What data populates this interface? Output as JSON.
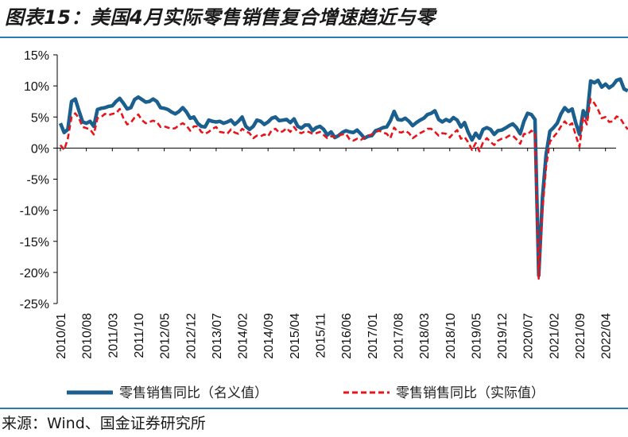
{
  "title": "图表15：美国4月实际零售销售复合增速趋近与零",
  "source": "来源：Wind、国金证券研究所",
  "colors": {
    "nominal": "#1a5f8e",
    "real": "#e8141b",
    "axis": "#000000",
    "rule": "#2a7ab5"
  },
  "chart_data": {
    "type": "line",
    "title": "图表15：美国4月实际零售销售复合增速趋近与零",
    "xlabel": "",
    "ylabel": "",
    "ylim": [
      -25,
      15
    ],
    "yticks": [
      "15%",
      "10%",
      "5%",
      "0%",
      "-5%",
      "-10%",
      "-15%",
      "-20%",
      "-25%"
    ],
    "ytick_values": [
      15,
      10,
      5,
      0,
      -5,
      -10,
      -15,
      -20,
      -25
    ],
    "xticks": [
      "2010/01",
      "2010/08",
      "2011/03",
      "2011/10",
      "2012/05",
      "2012/12",
      "2013/07",
      "2014/02",
      "2014/09",
      "2015/04",
      "2015/11",
      "2016/06",
      "2017/01",
      "2017/08",
      "2018/03",
      "2018/10",
      "2019/05",
      "2019/12",
      "2020/07",
      "2021/02",
      "2021/09",
      "2022/04"
    ],
    "xtick_indices": [
      0,
      7,
      14,
      21,
      28,
      35,
      42,
      49,
      56,
      63,
      70,
      77,
      84,
      91,
      98,
      105,
      112,
      119,
      126,
      133,
      140,
      147
    ],
    "n_points": 150,
    "legend_position": "bottom",
    "series": [
      {
        "name": "零售销售同比（名义值）",
        "style": "solid",
        "values": [
          4.0,
          2.5,
          3.0,
          7.5,
          7.9,
          6.0,
          4.2,
          4.0,
          4.3,
          3.5,
          6.2,
          6.4,
          6.5,
          6.7,
          6.8,
          7.5,
          8.0,
          7.2,
          6.3,
          6.5,
          7.8,
          8.2,
          7.8,
          7.4,
          7.5,
          7.9,
          7.5,
          6.5,
          6.4,
          6.2,
          5.8,
          5.5,
          5.9,
          6.5,
          5.8,
          4.8,
          5.0,
          4.0,
          3.5,
          3.4,
          4.5,
          4.3,
          4.2,
          4.3,
          4.0,
          4.2,
          4.5,
          3.8,
          4.3,
          5.0,
          3.5,
          3.0,
          3.5,
          4.5,
          4.3,
          3.8,
          4.2,
          4.8,
          5.0,
          4.4,
          4.5,
          4.6,
          4.1,
          4.7,
          3.5,
          3.2,
          3.7,
          3.7,
          2.8,
          3.3,
          3.5,
          3.0,
          2.1,
          2.6,
          1.7,
          2.0,
          2.5,
          2.8,
          2.6,
          2.5,
          2.9,
          2.3,
          1.6,
          1.9,
          2.0,
          2.8,
          3.0,
          3.3,
          3.4,
          4.4,
          5.9,
          4.6,
          4.5,
          4.8,
          4.3,
          3.6,
          4.1,
          4.5,
          4.8,
          5.4,
          5.6,
          6.0,
          4.6,
          4.2,
          4.6,
          4.3,
          4.9,
          4.5,
          3.4,
          4.1,
          2.5,
          1.3,
          2.4,
          1.6,
          3.0,
          3.3,
          3.0,
          2.2,
          2.8,
          2.9,
          3.2,
          3.6,
          3.9,
          3.3,
          2.3,
          4.3,
          5.6,
          5.4,
          4.6,
          -20.5,
          -8.0,
          -1.0,
          2.7,
          3.3,
          4.0,
          5.5,
          6.5,
          5.9,
          6.3,
          4.0,
          2.2,
          6.0,
          4.8,
          10.8,
          10.5,
          10.9,
          9.8,
          10.3,
          9.7,
          10.1,
          10.9,
          11.1,
          9.5,
          9.2
        ]
      },
      {
        "name": "零售销售同比（实际值）",
        "style": "dashed",
        "values": [
          0.5,
          -0.3,
          1.5,
          5.0,
          5.6,
          4.8,
          3.4,
          3.2,
          3.0,
          2.2,
          4.8,
          5.0,
          5.5,
          5.3,
          5.5,
          5.6,
          6.3,
          4.8,
          3.8,
          4.1,
          4.9,
          5.4,
          4.5,
          4.0,
          4.2,
          4.4,
          4.2,
          3.4,
          3.5,
          3.3,
          3.1,
          3.2,
          3.7,
          4.0,
          3.6,
          2.8,
          3.5,
          3.5,
          2.6,
          2.3,
          2.6,
          3.1,
          3.4,
          2.6,
          2.5,
          2.3,
          3.0,
          2.5,
          2.3,
          3.1,
          2.7,
          2.4,
          1.6,
          2.0,
          1.9,
          2.2,
          1.9,
          2.9,
          3.1,
          2.5,
          2.7,
          3.2,
          2.6,
          3.4,
          2.6,
          2.4,
          2.7,
          2.6,
          2.3,
          2.4,
          2.6,
          2.1,
          1.6,
          1.9,
          1.8,
          2.0,
          2.2,
          2.3,
          1.4,
          1.2,
          1.5,
          1.3,
          1.7,
          2.0,
          2.2,
          2.6,
          2.8,
          2.5,
          2.3,
          1.6,
          3.3,
          2.6,
          2.5,
          2.8,
          2.4,
          1.6,
          2.0,
          2.4,
          2.7,
          3.1,
          3.1,
          2.6,
          2.0,
          2.4,
          2.3,
          1.7,
          2.4,
          2.9,
          1.5,
          1.8,
          0.9,
          -0.3,
          0.8,
          -0.5,
          0.9,
          1.6,
          1.0,
          0.5,
          1.2,
          1.5,
          1.6,
          2.0,
          2.0,
          1.4,
          0.7,
          2.3,
          2.2,
          2.8,
          2.5,
          -21.0,
          -10.0,
          -3.0,
          1.0,
          1.8,
          2.5,
          3.5,
          4.3,
          3.6,
          4.0,
          2.0,
          0.2,
          5.0,
          3.8,
          7.9,
          7.2,
          6.2,
          4.8,
          5.0,
          4.2,
          4.3,
          5.1,
          4.8,
          3.8,
          3.0
        ]
      }
    ]
  },
  "legend": {
    "nominal": "零售销售同比（名义值）",
    "real": "零售销售同比（实际值）"
  }
}
